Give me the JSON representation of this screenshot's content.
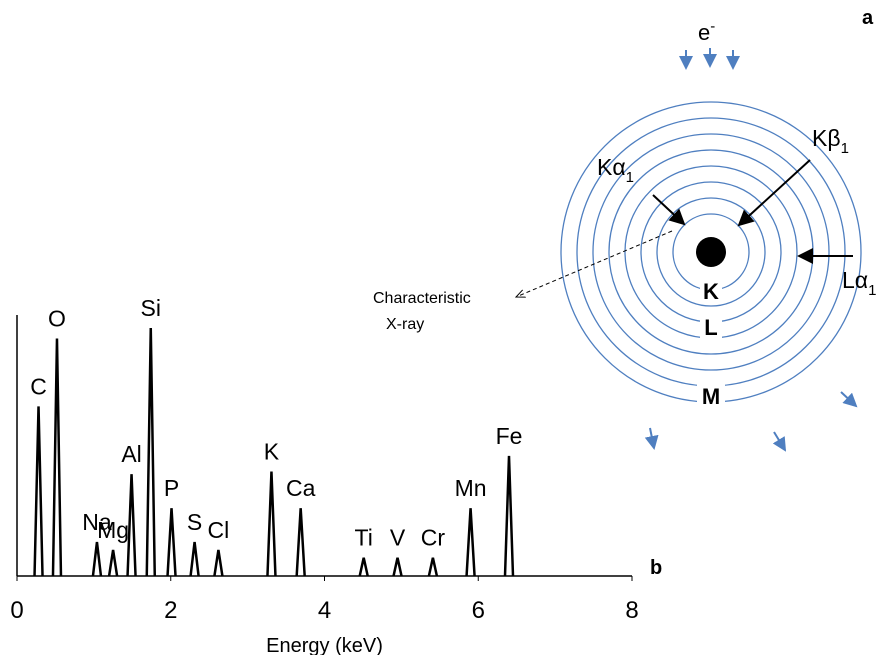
{
  "chart_data": {
    "type": "spectrum",
    "panel_label": "b",
    "x_label": "Energy (keV)",
    "categories": [
      "C",
      "O",
      "Na",
      "Mg",
      "Al",
      "Si",
      "P",
      "S",
      "Cl",
      "K",
      "Ca",
      "Ti",
      "V",
      "Cr",
      "Mn",
      "Fe"
    ],
    "x": [
      0.28,
      0.52,
      1.04,
      1.25,
      1.49,
      1.74,
      2.01,
      2.31,
      2.62,
      3.31,
      3.69,
      4.51,
      4.95,
      5.41,
      5.9,
      6.4
    ],
    "values": [
      65,
      91,
      13,
      10,
      39,
      95,
      26,
      13,
      10,
      40,
      26,
      7,
      7,
      7,
      26,
      46
    ],
    "color": "#000000",
    "xlim": [
      0,
      8
    ],
    "xticks": [
      0,
      2,
      4,
      6,
      8
    ],
    "ylim": [
      0,
      100
    ]
  },
  "diagram": {
    "panel_label": "a",
    "electron": "e",
    "electron_superscript": "-",
    "shells": [
      "K",
      "L",
      "M"
    ],
    "transitions": [
      {
        "label": "Kα",
        "sub": "1"
      },
      {
        "label": "Kβ",
        "sub": "1"
      },
      {
        "label": "Lα",
        "sub": "1"
      }
    ],
    "annotation_lines": [
      "Characteristic",
      "X-ray"
    ]
  }
}
